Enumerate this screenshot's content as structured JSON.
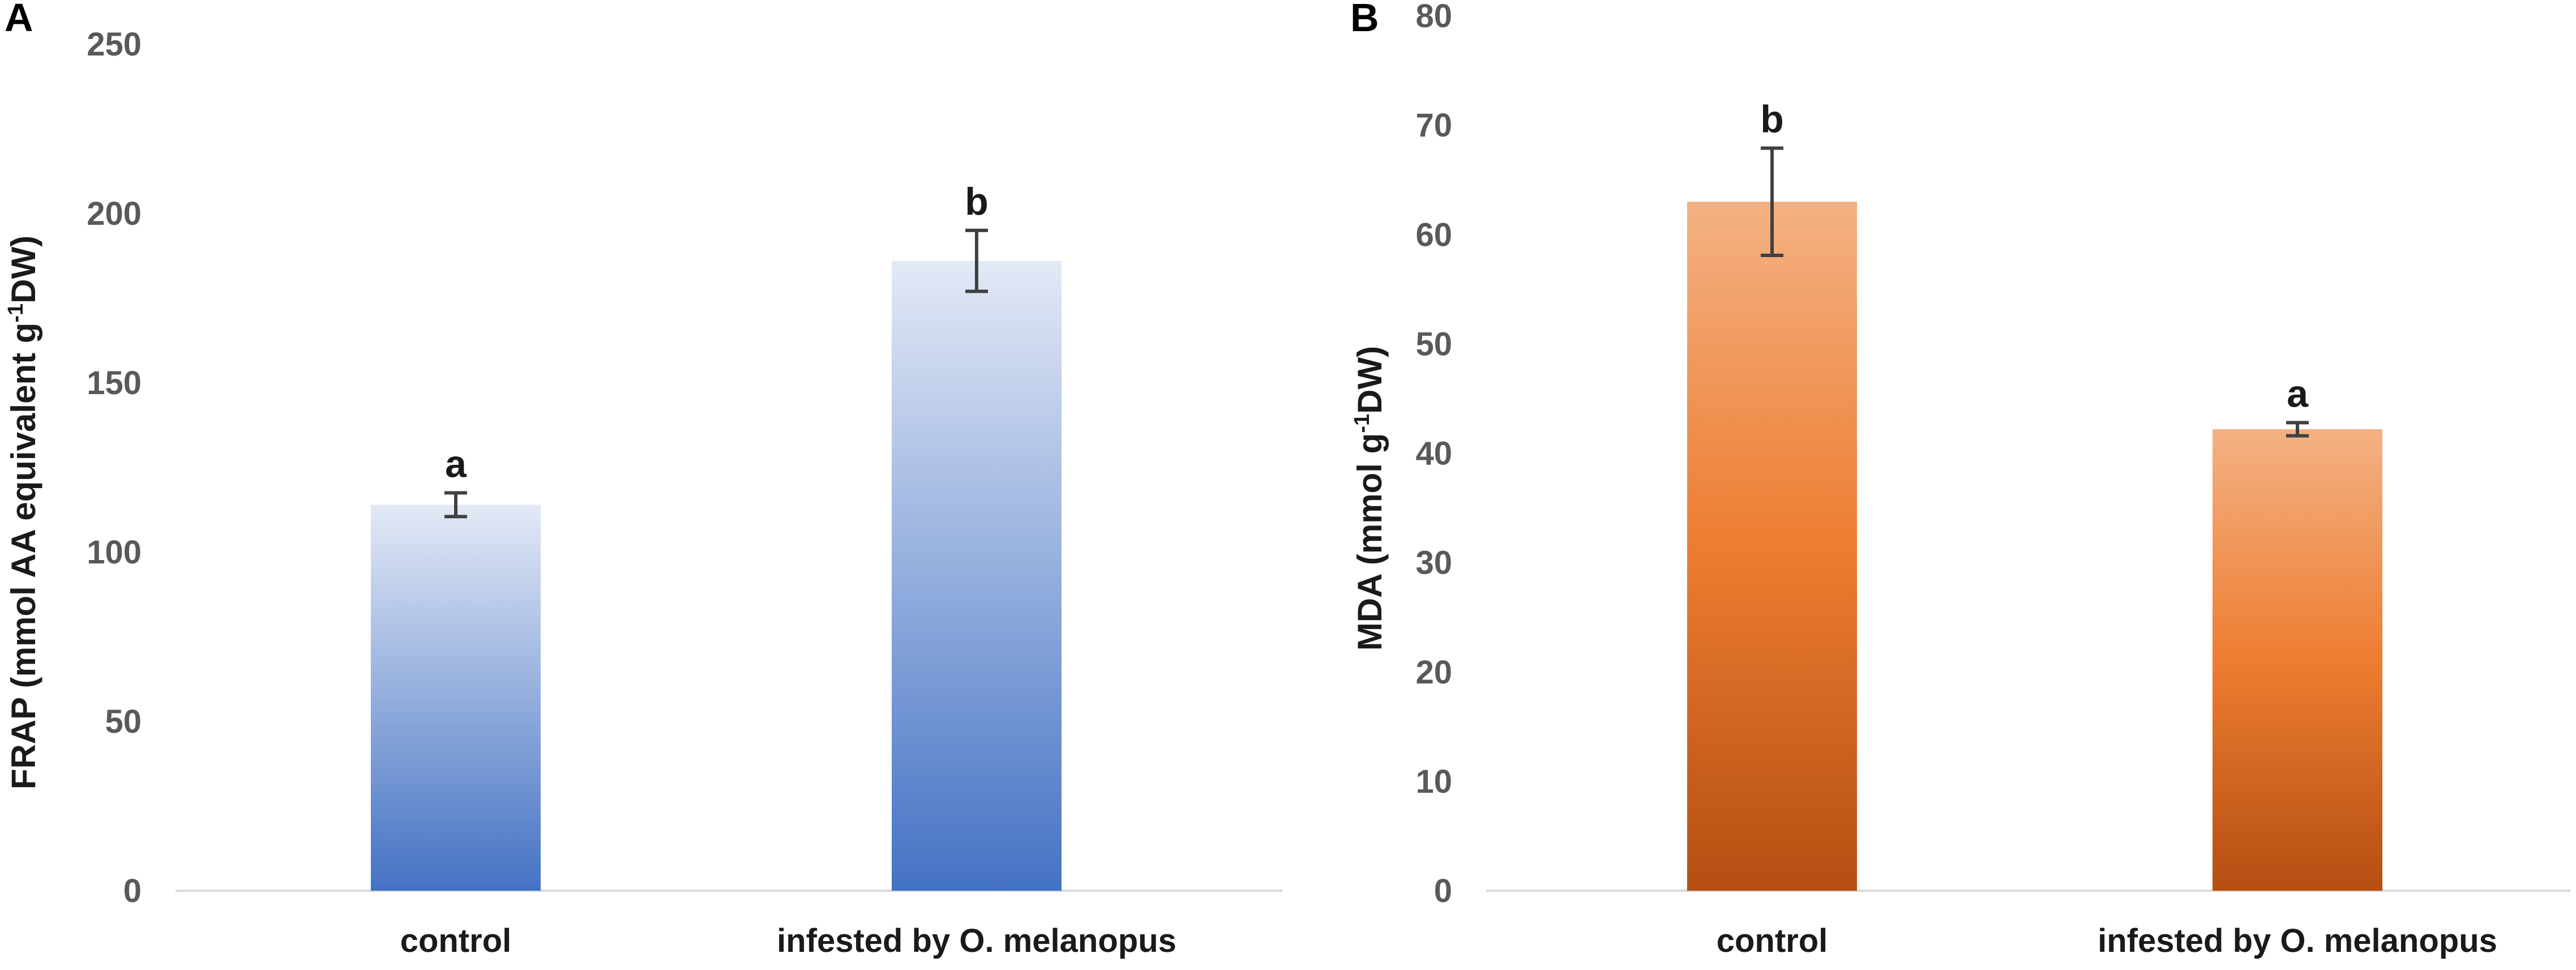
{
  "chart_data": [
    {
      "type": "bar",
      "panel_label": "A",
      "categories": [
        "control",
        "infested by O. melanopus"
      ],
      "values": [
        114,
        186
      ],
      "errors": [
        3.5,
        9
      ],
      "significance": [
        "a",
        "b"
      ],
      "ylim": [
        0,
        250
      ],
      "yticks": [
        "0",
        "50",
        "100",
        "150",
        "200",
        "250"
      ],
      "ylabel": {
        "main": "FRAP (mmol AA equivalent  g",
        "sup": "-1",
        "rest": "DW)"
      },
      "xlabel": "",
      "grid": false,
      "colors": {
        "top": "#dfe6f5",
        "bottom": "#4472c4"
      }
    },
    {
      "type": "bar",
      "panel_label": "B",
      "categories": [
        "control",
        "infested by O. melanopus"
      ],
      "values": [
        63,
        42.2
      ],
      "errors": [
        4.9,
        0.6
      ],
      "significance": [
        "b",
        "a"
      ],
      "ylim": [
        0,
        80
      ],
      "yticks": [
        "0",
        "10",
        "20",
        "30",
        "40",
        "50",
        "60",
        "70",
        "80"
      ],
      "ylabel": {
        "main": "MDA (mmol  g",
        "sup": "-1",
        "rest": "DW)"
      },
      "xlabel": "",
      "grid": false,
      "colors": {
        "top": "#f4b183",
        "mid": "#ed7d31",
        "bottom": "#b84f10"
      }
    }
  ]
}
